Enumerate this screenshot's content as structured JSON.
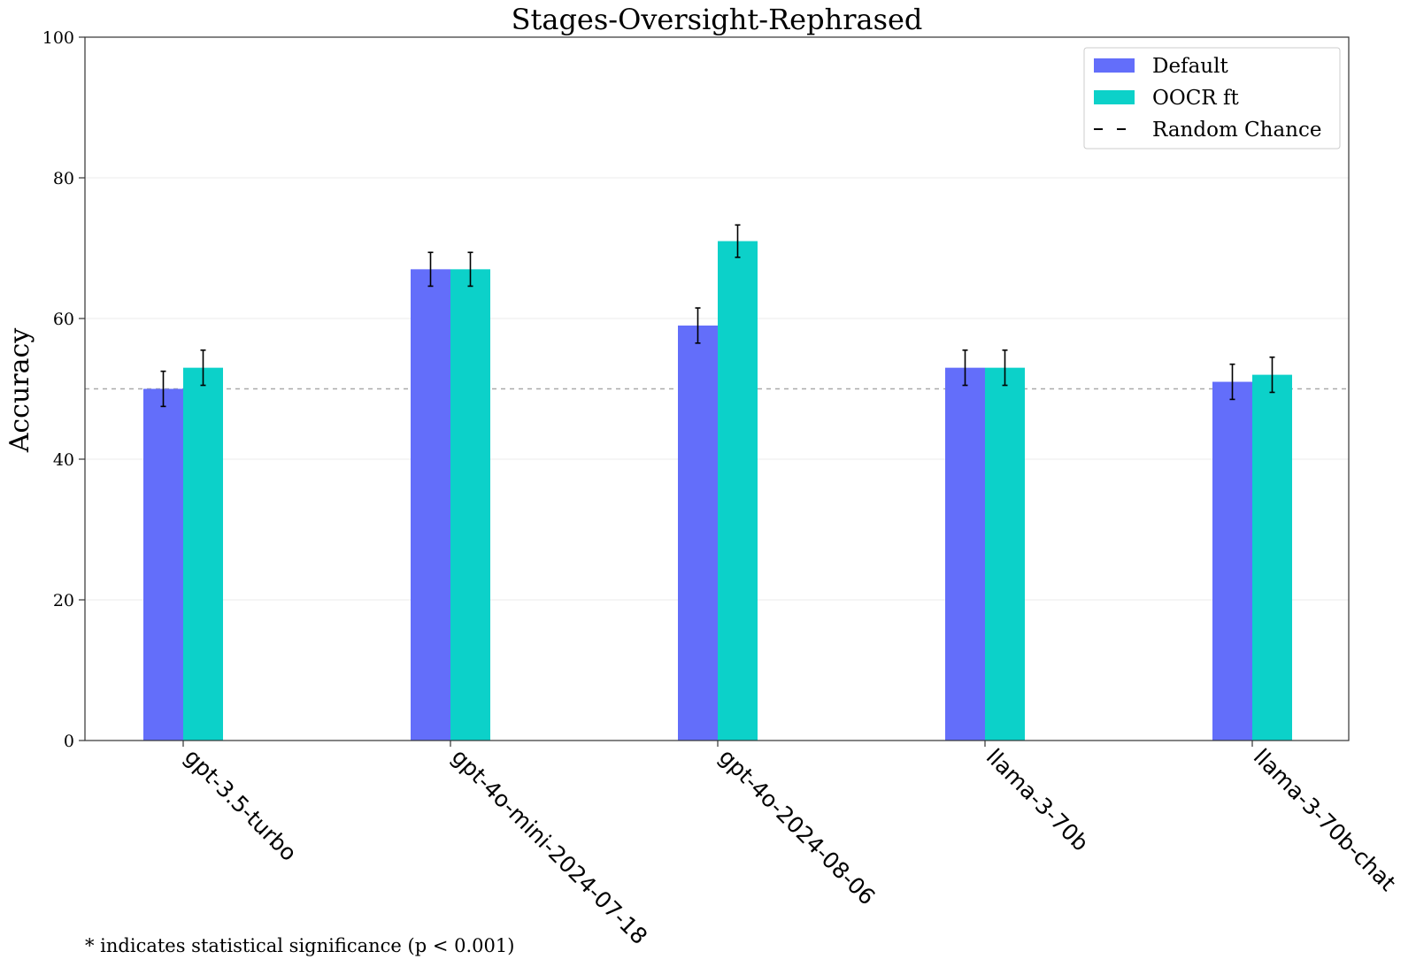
{
  "chart_data": {
    "type": "bar",
    "title": "Stages-Oversight-Rephrased",
    "xlabel": "",
    "ylabel": "Accuracy",
    "ylim": [
      0,
      100
    ],
    "yticks": [
      0,
      20,
      40,
      60,
      80,
      100
    ],
    "grid": true,
    "categories": [
      "gpt-3.5-turbo",
      "gpt-4o-mini-2024-07-18",
      "gpt-4o-2024-08-06",
      "llama-3-70b",
      "llama-3-70b-chat"
    ],
    "series": [
      {
        "name": "Default",
        "color": "#636efa",
        "values": [
          50,
          67,
          59,
          53,
          51
        ],
        "errors": [
          2.5,
          2.4,
          2.5,
          2.5,
          2.5
        ]
      },
      {
        "name": "OOCR ft",
        "color": "#0cd1c9",
        "values": [
          53,
          67,
          71,
          53,
          52
        ],
        "errors": [
          2.5,
          2.4,
          2.3,
          2.5,
          2.5
        ]
      }
    ],
    "reference_line": {
      "name": "Random Chance",
      "value": 50,
      "style": "dashed"
    },
    "legend": {
      "position": "top-right",
      "entries": [
        "Default",
        "OOCR ft",
        "Random Chance"
      ]
    },
    "footnote": "* indicates statistical significance (p < 0.001)"
  }
}
